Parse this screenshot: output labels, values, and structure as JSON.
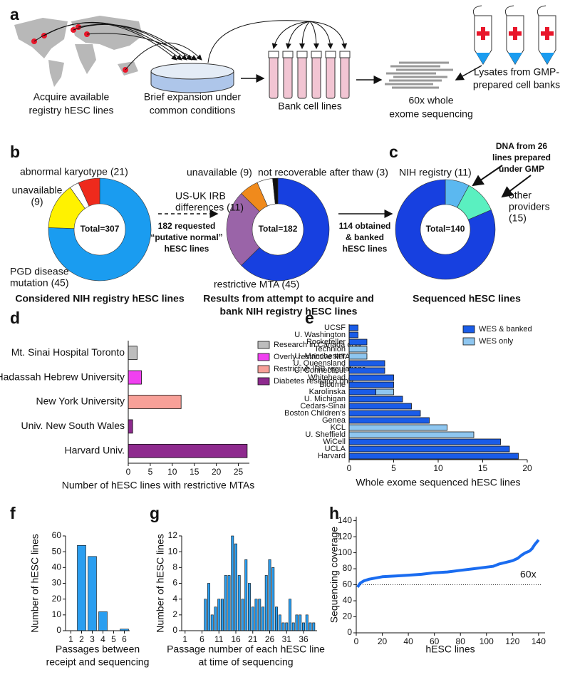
{
  "diagram": {
    "panel": "a",
    "steps": [
      [
        "Acquire available",
        "registry hESC lines"
      ],
      [
        "Brief expansion under",
        "common conditions"
      ],
      [
        "Bank cell lines"
      ],
      [
        "60x whole",
        "exome sequencing"
      ],
      [
        "Lysates from GMP-",
        "prepared cell banks"
      ]
    ]
  },
  "chart_data": [
    {
      "type": "donut",
      "panel": "b",
      "center_label": "Total=307",
      "categories": [
        null,
        [
          "PGD disease",
          "mutation (45)"
        ],
        [
          "unavailable",
          "(9)"
        ],
        "abnormal karyotype (21)"
      ],
      "values": [
        232,
        45,
        9,
        21
      ],
      "colors": [
        "#1a9cf0",
        "#fff200",
        "#ffffff",
        "#ee2a1c"
      ],
      "caption": [
        "Considered NIH registry hESC lines"
      ],
      "annotation": [
        "182 requested",
        "“putative normal”",
        "hESC lines"
      ]
    },
    {
      "type": "donut",
      "center_label": "Total=182",
      "categories": [
        null,
        "restrictive MTA (45)",
        [
          "US-UK IRB",
          "differences (11)"
        ],
        "unavailable (9)",
        "not recoverable after thaw (3)"
      ],
      "values": [
        114,
        45,
        11,
        9,
        3
      ],
      "colors": [
        "#1740e0",
        "#9a64a8",
        "#f08a1c",
        "#ffffff",
        "#111111"
      ],
      "caption": [
        "Results from attempt to acquire and",
        "bank NIH registry hESC lines"
      ],
      "annotation": [
        "114 obtained",
        "& banked",
        "hESC lines"
      ]
    },
    {
      "type": "donut",
      "panel": "c",
      "center_label": "Total=140",
      "categories": [
        "NIH registry (11)",
        [
          "other",
          "providers",
          "(15)"
        ],
        null
      ],
      "values": [
        11,
        15,
        114
      ],
      "colors": [
        "#5bb8f0",
        "#5af0c0",
        "#1740e0"
      ],
      "caption": [
        "Sequenced hESC lines"
      ],
      "annotation": [
        "DNA from 26",
        "lines prepared",
        "under GMP"
      ]
    },
    {
      "type": "hbar",
      "panel": "d",
      "stacked": false,
      "categories": [
        "Mt. Sinai Hospital Toronto",
        "Hadassah Hebrew University",
        "New York University",
        "Univ. New South Wales",
        "Harvard Univ."
      ],
      "series": [
        {
          "name": "Research in Canada only",
          "color": "#bdbdbd",
          "values": [
            2,
            null,
            null,
            null,
            null
          ]
        },
        {
          "name": "Overly restrictive MTA",
          "color": "#f040f0",
          "values": [
            null,
            3,
            null,
            null,
            null
          ]
        },
        {
          "name": "Restrictive IRB regulations",
          "color": "#f8a098",
          "values": [
            null,
            null,
            12,
            null,
            null
          ]
        },
        {
          "name": "Diabetes research only",
          "color": "#8e2a8e",
          "values": [
            null,
            null,
            null,
            1,
            27
          ]
        }
      ],
      "xlim": [
        0,
        27.5
      ],
      "xticks": [
        0,
        5,
        10,
        15,
        20,
        25
      ],
      "xlabel": "Number of hESC lines with restrictive MTAs"
    },
    {
      "type": "hbar",
      "panel": "e",
      "stacked": true,
      "categories": [
        "UCSF",
        "U. Washington",
        "Rockefeller",
        "Technion",
        "U. Manchester",
        "U. Queensland",
        "U. Connecticut",
        "Whitehead",
        "Biotime",
        "Karolinska",
        "U. Michigan",
        "Cedars-Sinai",
        "Boston Children's",
        "Genea",
        "KCL",
        "U. Sheffield",
        "WiCell",
        "UCLA",
        "Harvard"
      ],
      "series": [
        {
          "name": "WES & banked",
          "color": "#1a5ce8",
          "values": [
            1,
            1,
            2,
            null,
            null,
            4,
            4,
            5,
            5,
            3,
            6,
            7,
            8,
            9,
            null,
            null,
            17,
            18,
            19
          ]
        },
        {
          "name": "WES only",
          "color": "#8ec6f0",
          "values": [
            null,
            null,
            null,
            2,
            2,
            null,
            null,
            null,
            null,
            2,
            null,
            null,
            null,
            null,
            11,
            14,
            null,
            null,
            null
          ]
        }
      ],
      "xlim": [
        0,
        20
      ],
      "xticks": [
        0,
        5,
        10,
        15,
        20
      ],
      "xlabel": "Whole exome sequenced hESC lines"
    },
    {
      "type": "bar",
      "panel": "f",
      "color": "#2a9ef0",
      "x": [
        2,
        3,
        4,
        6
      ],
      "values": [
        54,
        47,
        12,
        1
      ],
      "xlim": [
        0.5,
        6.5
      ],
      "xticks": [
        1,
        2,
        3,
        4,
        5,
        6
      ],
      "ylim": [
        0,
        60
      ],
      "yticks": [
        0,
        10,
        20,
        30,
        40,
        50,
        60
      ],
      "ylabel": "Number of hESC lines",
      "xlabel": [
        "Passages between",
        "receipt and sequencing"
      ]
    },
    {
      "type": "bar",
      "panel": "g",
      "color": "#2a9ef0",
      "x": [
        7,
        8,
        9,
        10,
        11,
        12,
        13,
        14,
        15,
        16,
        17,
        18,
        19,
        20,
        21,
        22,
        23,
        24,
        25,
        26,
        27,
        28,
        29,
        30,
        31,
        32,
        33,
        34,
        35,
        36,
        37,
        38,
        39
      ],
      "values": [
        4,
        6,
        2,
        3,
        4,
        4,
        7,
        7,
        12,
        11,
        7,
        4,
        9,
        6,
        3,
        4,
        4,
        3,
        7,
        9,
        8,
        3,
        2,
        1,
        1,
        4,
        1,
        2,
        2,
        1,
        2,
        1,
        1
      ],
      "xlim": [
        0,
        40
      ],
      "xticks": [
        1,
        6,
        11,
        16,
        21,
        26,
        31,
        36
      ],
      "ylim": [
        0,
        12
      ],
      "yticks": [
        0,
        2,
        4,
        6,
        8,
        10,
        12
      ],
      "ylabel": "Number of hESC lines",
      "xlabel": [
        "Passage number of each hESC line",
        "at time of sequencing"
      ]
    },
    {
      "type": "line",
      "panel": "h",
      "color": "#1a6cf0",
      "x": [
        1,
        3,
        6,
        10,
        20,
        30,
        40,
        50,
        60,
        70,
        80,
        90,
        100,
        105,
        110,
        115,
        120,
        124,
        127,
        130,
        133,
        135,
        137,
        140
      ],
      "values": [
        57,
        62,
        65,
        67,
        70,
        71,
        72,
        73,
        75,
        76,
        78,
        80,
        82,
        83,
        86,
        88,
        90,
        93,
        97,
        100,
        102,
        105,
        110,
        116
      ],
      "hline": 60,
      "hline_label": "60x",
      "xlim": [
        0,
        145
      ],
      "xticks": [
        0,
        20,
        40,
        60,
        80,
        100,
        120,
        140
      ],
      "ylim": [
        0,
        145
      ],
      "yticks": [
        0,
        20,
        40,
        60,
        80,
        100,
        120,
        140
      ],
      "ylabel": "Sequencing coverage",
      "xlabel": "hESC lines"
    }
  ]
}
